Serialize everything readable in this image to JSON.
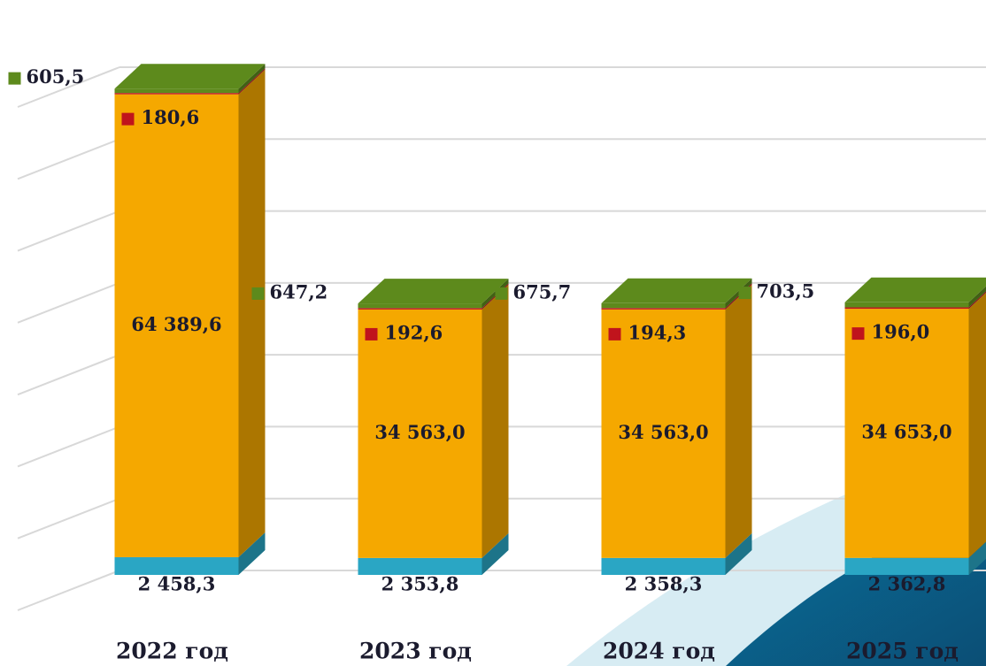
{
  "chart_data": {
    "type": "bar3d_stacked",
    "categories": [
      "2022 год",
      "2023 год",
      "2024 год",
      "2025 год"
    ],
    "series": [
      {
        "color": "#2aa6c4",
        "values": [
          2458.3,
          2353.8,
          2358.3,
          2362.8
        ],
        "value_labels": [
          "2 458,3",
          "2 353,8",
          "2 358,3",
          "2 362,8"
        ]
      },
      {
        "color": "#f5a800",
        "values": [
          64389.6,
          34563.0,
          34563.0,
          34653.0
        ],
        "value_labels": [
          "64 389,6",
          "34 563,0",
          "34 563,0",
          "34 653,0"
        ]
      },
      {
        "color": "#c0141c",
        "values": [
          180.6,
          192.6,
          194.3,
          196.0
        ],
        "value_labels": [
          "180,6",
          "192,6",
          "194,3",
          "196,0"
        ]
      },
      {
        "color": "#5d8a1c",
        "values": [
          605.5,
          647.2,
          675.7,
          703.5
        ],
        "value_labels": [
          "605,5",
          "647,2",
          "675,7",
          "703,5"
        ]
      }
    ],
    "ylim": [
      0,
      70000
    ],
    "yticks": [
      0,
      10000,
      20000,
      30000,
      40000,
      50000,
      60000,
      70000
    ],
    "grid": true
  }
}
